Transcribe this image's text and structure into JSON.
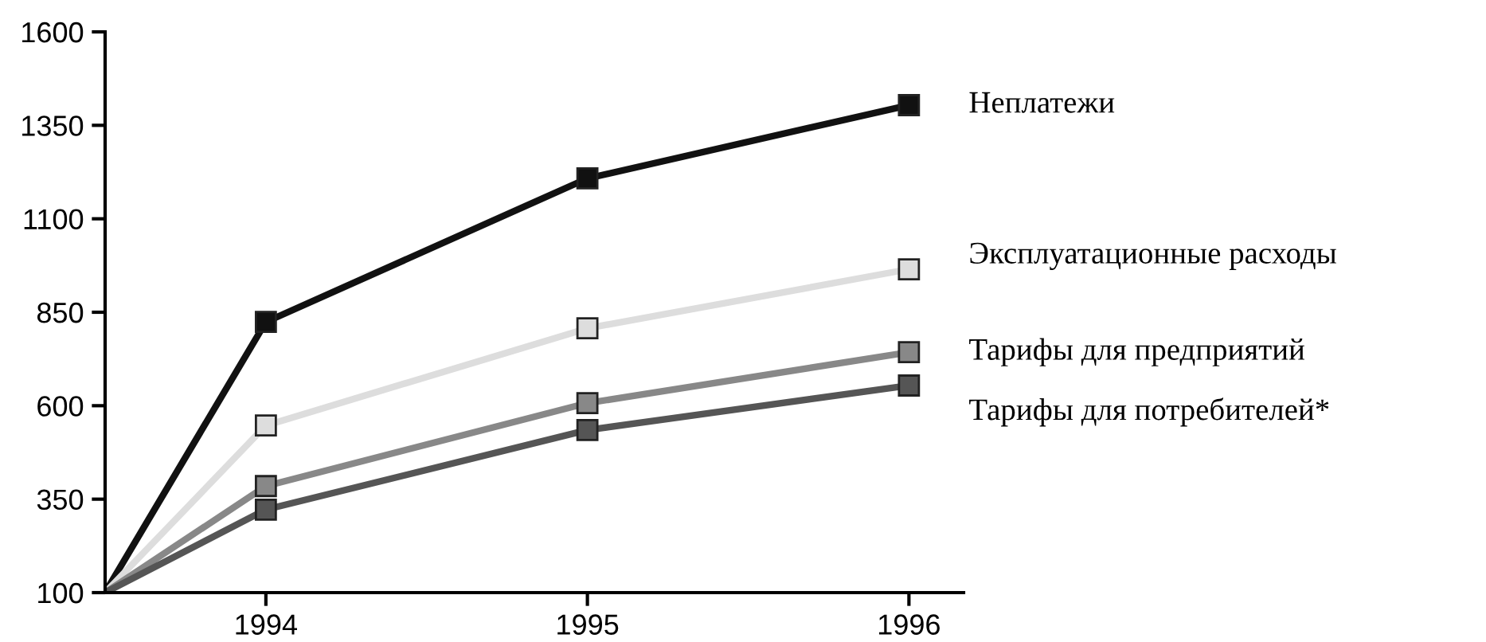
{
  "chart_data": {
    "type": "line",
    "x": [
      1993.5,
      1994,
      1995,
      1996
    ],
    "xlim": [
      1993.5,
      1996.17
    ],
    "xticks": [
      1994,
      1995,
      1996
    ],
    "ylim": [
      100,
      1600
    ],
    "yticks": [
      100,
      350,
      600,
      850,
      1100,
      1350,
      1600
    ],
    "grid": false,
    "legend": false,
    "marker": "square",
    "line_style": "solid",
    "series": [
      {
        "name": "Неплатежи",
        "color": "#111111",
        "values": [
          100,
          824,
          1208,
          1404
        ]
      },
      {
        "name": "Эксплуатационные расходы",
        "color": "#dddddd",
        "values": [
          100,
          547,
          807,
          965
        ]
      },
      {
        "name": "Тарифы для предприятий",
        "color": "#888888",
        "values": [
          100,
          385,
          607,
          743
        ]
      },
      {
        "name": "Тарифы для потребителей*",
        "color": "#555555",
        "values": [
          100,
          322,
          535,
          654
        ]
      }
    ]
  }
}
